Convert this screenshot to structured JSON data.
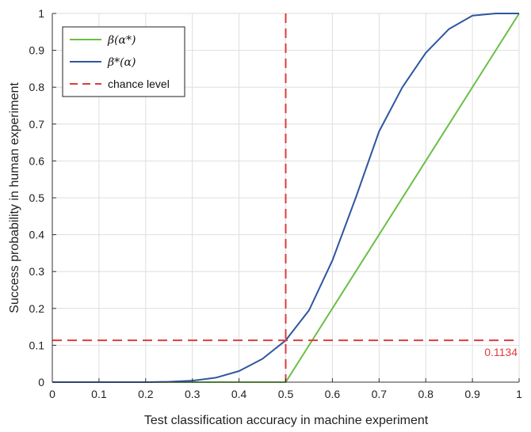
{
  "chart_data": {
    "type": "line",
    "xlabel": "Test classification accuracy in machine experiment",
    "ylabel": "Success probability in human experiment",
    "xlim": [
      0,
      1
    ],
    "ylim": [
      0,
      1
    ],
    "x_ticks": [
      "0",
      "0.1",
      "0.2",
      "0.3",
      "0.4",
      "0.5",
      "0.6",
      "0.7",
      "0.8",
      "0.9",
      "1"
    ],
    "y_ticks": [
      "0",
      "0.1",
      "0.2",
      "0.3",
      "0.4",
      "0.5",
      "0.6",
      "0.7",
      "0.8",
      "0.9",
      "1"
    ],
    "highlighted_x_tick": "0.5",
    "grid": true,
    "legend_position": "top-left",
    "series": [
      {
        "name": "β(α*)",
        "color": "#6abf45",
        "x": [
          0,
          0.5,
          1
        ],
        "y": [
          0,
          0,
          1
        ]
      },
      {
        "name": "β*(α)",
        "color": "#2f56a0",
        "x": [
          0,
          0.2,
          0.25,
          0.3,
          0.35,
          0.4,
          0.45,
          0.5,
          0.55,
          0.6,
          0.65,
          0.7,
          0.75,
          0.8,
          0.85,
          0.9,
          0.95,
          1
        ],
        "y": [
          0,
          0.0,
          0.001,
          0.004,
          0.012,
          0.03,
          0.063,
          0.1134,
          0.195,
          0.33,
          0.5,
          0.68,
          0.8,
          0.893,
          0.958,
          0.994,
          1,
          1
        ]
      },
      {
        "name": "chance level",
        "color": "#e03b3b",
        "dashed": true,
        "x": [
          0,
          1
        ],
        "y": [
          0.1134,
          0.1134
        ]
      }
    ],
    "vertical_reference": {
      "x": 0.5,
      "color": "#e03b3b"
    },
    "annotations": [
      {
        "text": "0.1134",
        "x": 1,
        "y": 0.1134,
        "color": "#e03b3b"
      }
    ]
  },
  "legend": {
    "items": [
      {
        "label": "β(α*)",
        "color": "#6abf45",
        "style": "solid"
      },
      {
        "label": "β*(α)",
        "color": "#2f56a0",
        "style": "solid"
      },
      {
        "label": "chance level",
        "color": "#e03b3b",
        "style": "dashed"
      }
    ]
  }
}
